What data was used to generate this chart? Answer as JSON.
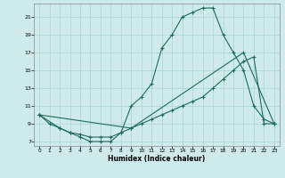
{
  "xlabel": "Humidex (Indice chaleur)",
  "bg_color": "#ceeaea",
  "line_color": "#1e6b5e",
  "grid_color": "#a8d4d4",
  "xlim": [
    -0.5,
    23.5
  ],
  "ylim": [
    6.5,
    22.5
  ],
  "xticks": [
    0,
    1,
    2,
    3,
    4,
    5,
    6,
    7,
    8,
    9,
    10,
    11,
    12,
    13,
    14,
    15,
    16,
    17,
    18,
    19,
    20,
    21,
    22,
    23
  ],
  "yticks": [
    7,
    9,
    11,
    13,
    15,
    17,
    19,
    21
  ],
  "line1_x": [
    0,
    1,
    2,
    3,
    4,
    5,
    6,
    7,
    8,
    9,
    10,
    11,
    12,
    13,
    14,
    15,
    16,
    17,
    18,
    19,
    20,
    21,
    22,
    23
  ],
  "line1_y": [
    10,
    9,
    8.5,
    8,
    7.5,
    7,
    7,
    7,
    8,
    11,
    12,
    13.5,
    17.5,
    19,
    21,
    21.5,
    22,
    22,
    19,
    17,
    15,
    11,
    9.5,
    9
  ],
  "line2_x": [
    0,
    2,
    3,
    4,
    5,
    6,
    7,
    8,
    9,
    10,
    11,
    12,
    13,
    14,
    15,
    16,
    17,
    18,
    19,
    20,
    21,
    22,
    23
  ],
  "line2_y": [
    10,
    8.5,
    8,
    7.8,
    7.5,
    7.5,
    7.5,
    8,
    8.5,
    9,
    9.5,
    10,
    10.5,
    11,
    11.5,
    12,
    13,
    14,
    15,
    16,
    16.5,
    9,
    9
  ],
  "line3_x": [
    0,
    9,
    20,
    23
  ],
  "line3_y": [
    10,
    8.5,
    17,
    9
  ]
}
